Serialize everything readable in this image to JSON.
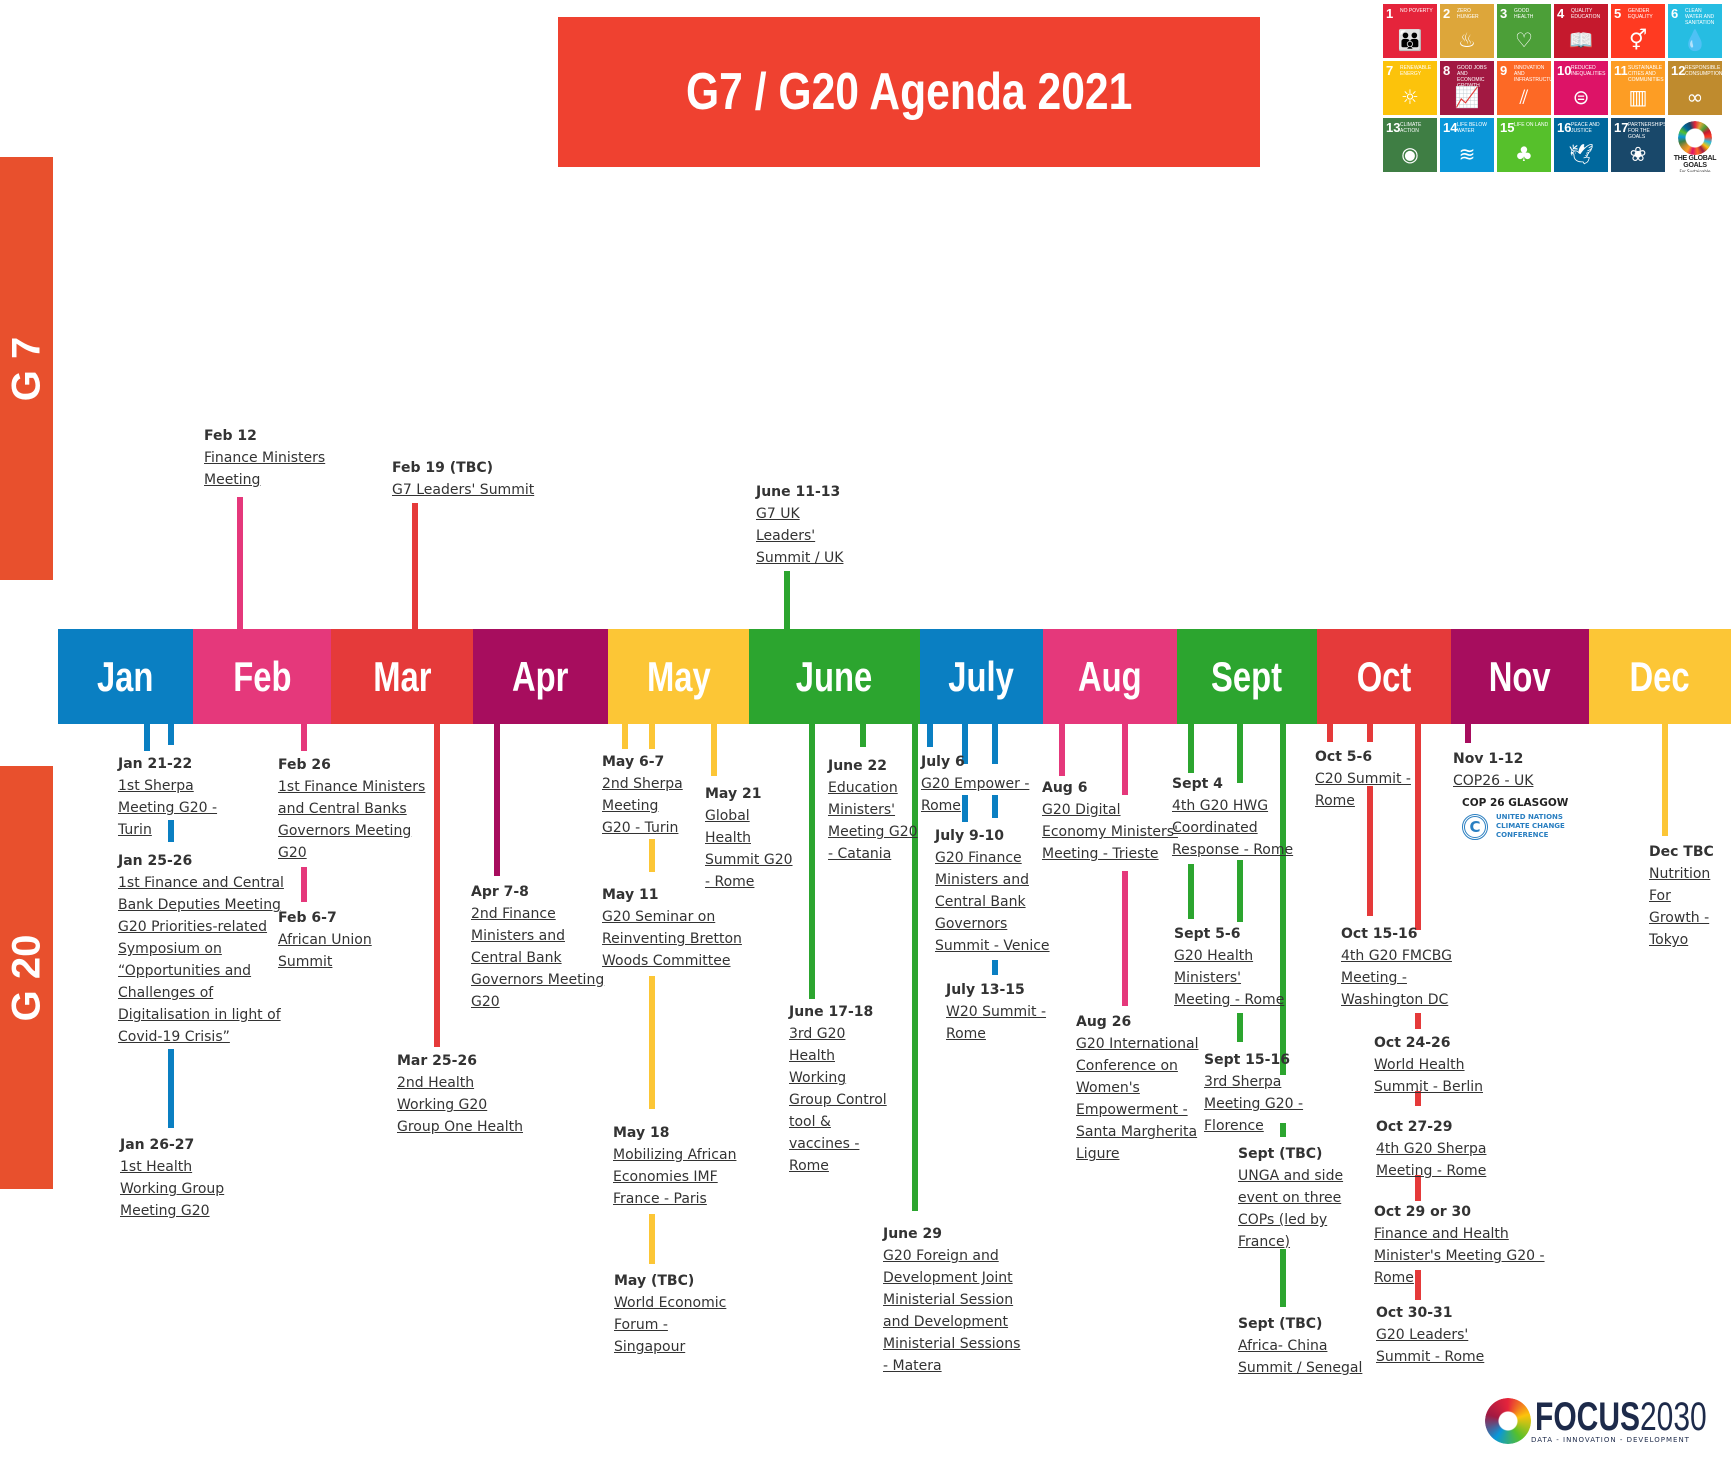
{
  "title": "G7 / G20 Agenda 2021",
  "side_labels": {
    "g7": "G 7",
    "g20": "G 20"
  },
  "months": [
    {
      "label": "Jan",
      "color": "#0a7fc2"
    },
    {
      "label": "Feb",
      "color": "#e5387b"
    },
    {
      "label": "Mar",
      "color": "#e53a3a"
    },
    {
      "label": "Apr",
      "color": "#a70d5e"
    },
    {
      "label": "May",
      "color": "#fcc636"
    },
    {
      "label": "June",
      "color": "#2ca52f"
    },
    {
      "label": "July",
      "color": "#0a7fc2"
    },
    {
      "label": "Aug",
      "color": "#e5387b"
    },
    {
      "label": "Sept",
      "color": "#2ca52f"
    },
    {
      "label": "Oct",
      "color": "#e53a3a"
    },
    {
      "label": "Nov",
      "color": "#a70d5e"
    },
    {
      "label": "Dec",
      "color": "#fcc636"
    }
  ],
  "g7_events": [
    {
      "date": "Feb 12",
      "title": [
        "Finance Ministers",
        "Meeting"
      ]
    },
    {
      "date": "Feb 19 (TBC)",
      "title": [
        "G7 Leaders' Summit"
      ]
    },
    {
      "date": "June 11-13",
      "title": [
        "G7 UK",
        "Leaders'",
        "Summit / UK"
      ]
    }
  ],
  "g20_events": [
    {
      "date": "Jan 21-22",
      "title": [
        "1st Sherpa",
        "Meeting G20 -",
        "Turin"
      ]
    },
    {
      "date": "Jan 25-26",
      "title": [
        "1st Finance and Central",
        "Bank Deputies Meeting",
        "G20 Priorities-related",
        "Symposium on",
        "“Opportunities and",
        "Challenges of",
        "Digitalisation in light of",
        "Covid-19 Crisis”"
      ]
    },
    {
      "date": "Jan 26-27",
      "title": [
        "1st Health",
        "Working Group",
        "Meeting G20"
      ]
    },
    {
      "date": "Feb 26",
      "title": [
        "1st Finance Ministers",
        "and Central Banks",
        "Governors Meeting",
        "G20"
      ]
    },
    {
      "date": "Feb 6-7",
      "title": [
        "African Union",
        "Summit"
      ]
    },
    {
      "date": "Mar 25-26",
      "title": [
        "2nd Health",
        "Working G20",
        "Group One Health"
      ]
    },
    {
      "date": "Apr 7-8",
      "title": [
        "2nd Finance",
        "Ministers and",
        "Central Bank",
        "Governors Meeting",
        "G20"
      ]
    },
    {
      "date": "May 6-7",
      "title": [
        "2nd Sherpa",
        "Meeting",
        "G20 - Turin"
      ]
    },
    {
      "date": "May 21",
      "title": [
        "Global",
        "Health",
        "Summit G20",
        "- Rome"
      ]
    },
    {
      "date": "May 11",
      "title": [
        "G20 Seminar on",
        "Reinventing Bretton",
        "Woods Committee"
      ]
    },
    {
      "date": "May 18",
      "title": [
        "Mobilizing African",
        "Economies IMF",
        "France - Paris"
      ]
    },
    {
      "date": "May (TBC)",
      "title": [
        "World Economic",
        "Forum -",
        "Singapour"
      ]
    },
    {
      "date": "June 22",
      "title": [
        "Education",
        "Ministers'",
        "Meeting G20",
        "-  Catania"
      ]
    },
    {
      "date": "June 17-18",
      "title": [
        "3rd G20",
        "Health",
        "Working",
        "Group Control",
        "tool &",
        "vaccines -",
        "Rome"
      ]
    },
    {
      "date": "June 29",
      "title": [
        "G20 Foreign and",
        "Development Joint",
        "Ministerial Session",
        "and Development",
        "Ministerial Sessions",
        "- Matera"
      ]
    },
    {
      "date": "July 6",
      "title": [
        "G20 Empower -",
        "Rome"
      ]
    },
    {
      "date": "July 9-10",
      "title": [
        "G20 Finance",
        "Ministers and",
        "Central Bank",
        "Governors",
        "Summit - Venice"
      ]
    },
    {
      "date": "July 13-15",
      "title": [
        "W20 Summit -",
        "Rome"
      ]
    },
    {
      "date": "Aug 6",
      "title": [
        "G20 Digital",
        "Economy Ministers'",
        "Meeting - Trieste"
      ]
    },
    {
      "date": "Aug 26",
      "title": [
        "G20 International",
        "Conference on",
        "Women's",
        "Empowerment -",
        "Santa Margherita",
        "Ligure"
      ]
    },
    {
      "date": "Sept 4",
      "title": [
        "4th G20 HWG",
        "Coordinated",
        "Response - Rome"
      ]
    },
    {
      "date": "Sept 5-6",
      "title": [
        "G20 Health",
        "Ministers'",
        "Meeting - Rome"
      ]
    },
    {
      "date": "Sept 15-16",
      "title": [
        "3rd Sherpa",
        "Meeting G20 -",
        "Florence"
      ]
    },
    {
      "date": "Sept (TBC)",
      "title": [
        "UNGA and side",
        "event on three",
        "COPs (led by",
        "France)"
      ]
    },
    {
      "date": "Sept (TBC)",
      "title": [
        "Africa- China",
        "Summit / Senegal"
      ]
    },
    {
      "date": "Oct 5-6",
      "title": [
        "C20 Summit -",
        "Rome"
      ]
    },
    {
      "date": "Oct 15-16",
      "title": [
        "4th G20 FMCBG",
        "Meeting -",
        "Washington DC"
      ]
    },
    {
      "date": "Oct 24-26",
      "title": [
        "World Health",
        "Summit - Berlin"
      ]
    },
    {
      "date": "Oct 27-29",
      "title": [
        "4th G20 Sherpa",
        "Meeting - Rome"
      ]
    },
    {
      "date": "Oct 29 or 30",
      "title": [
        "Finance and Health",
        "Minister's Meeting G20 -",
        "Rome"
      ]
    },
    {
      "date": "Oct 30-31",
      "title": [
        "G20 Leaders'",
        "Summit - Rome"
      ]
    },
    {
      "date": "Nov 1-12",
      "title": [
        "COP26 - UK"
      ]
    },
    {
      "date": "Dec TBC",
      "title": [
        "Nutrition",
        "For",
        "Growth -",
        "Tokyo"
      ]
    }
  ],
  "cop_logo": {
    "heading": "COP 26 GLASGOW",
    "emblem": "unfccc-emblem-icon",
    "text": [
      "UNITED NATIONS",
      "CLIMATE CHANGE",
      "CONFERENCE"
    ]
  },
  "sdg": {
    "tiles": [
      {
        "n": "1",
        "label": "No poverty",
        "color": "#e5243b",
        "icon": "family-icon"
      },
      {
        "n": "2",
        "label": "Zero hunger",
        "color": "#dda63a",
        "icon": "bowl-icon"
      },
      {
        "n": "3",
        "label": "Good health",
        "color": "#4c9f38",
        "icon": "heartbeat-icon"
      },
      {
        "n": "4",
        "label": "Quality education",
        "color": "#c5192d",
        "icon": "book-icon"
      },
      {
        "n": "5",
        "label": "Gender equality",
        "color": "#ff3a21",
        "icon": "gender-icon"
      },
      {
        "n": "6",
        "label": "Clean water and sanitation",
        "color": "#26bde2",
        "icon": "water-icon"
      },
      {
        "n": "7",
        "label": "Renewable energy",
        "color": "#fcc30b",
        "icon": "sun-icon"
      },
      {
        "n": "8",
        "label": "Good jobs and economic growth",
        "color": "#a21942",
        "icon": "growth-chart-icon"
      },
      {
        "n": "9",
        "label": "Innovation and infrastructure",
        "color": "#fd6925",
        "icon": "binary-icon"
      },
      {
        "n": "10",
        "label": "Reduced inequalities",
        "color": "#dd1367",
        "icon": "equals-icon"
      },
      {
        "n": "11",
        "label": "Sustainable cities and communities",
        "color": "#fd9d24",
        "icon": "city-icon"
      },
      {
        "n": "12",
        "label": "Responsible consumption",
        "color": "#bf8b2e",
        "icon": "infinity-icon"
      },
      {
        "n": "13",
        "label": "Climate action",
        "color": "#3f7e44",
        "icon": "eye-globe-icon"
      },
      {
        "n": "14",
        "label": "Life below water",
        "color": "#0a97d9",
        "icon": "fish-icon"
      },
      {
        "n": "15",
        "label": "Life on land",
        "color": "#56c02b",
        "icon": "tree-icon"
      },
      {
        "n": "16",
        "label": "Peace and justice",
        "color": "#00689d",
        "icon": "dove-icon"
      },
      {
        "n": "17",
        "label": "Partnerships for the goals",
        "color": "#19486a",
        "icon": "rings-icon"
      }
    ],
    "brand": "THE GLOBAL GOALS",
    "brand_sub": "For Sustainable Development"
  },
  "focus_logo": {
    "name_bold": "FOCUS",
    "name_light": "2030",
    "tagline": "DATA - INNOVATION - DEVELOPMENT"
  }
}
